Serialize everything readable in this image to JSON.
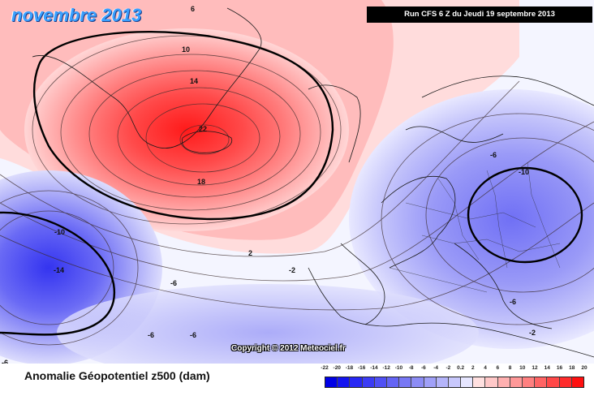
{
  "header": {
    "month_title": "novembre 2013",
    "run_info": "Run CFS 6 Z du Jeudi 19 septembre 2013"
  },
  "map": {
    "copyright": "Copyright © 2012 Meteociel.fr",
    "contour_labels": [
      "6",
      "10",
      "14",
      "22",
      "18",
      "2",
      "-2",
      "-6",
      "-10",
      "-14",
      "-6",
      "-6",
      "-6",
      "-6",
      "-10",
      "-6",
      "-2"
    ]
  },
  "footer": {
    "caption": "Anomalie Géopotentiel z500 (dam)"
  },
  "legend": {
    "ticks": [
      "-22",
      "-20",
      "-18",
      "-16",
      "-14",
      "-12",
      "-10",
      "-8",
      "-6",
      "-4",
      "-2",
      "0.2",
      "2",
      "4",
      "6",
      "8",
      "10",
      "12",
      "14",
      "16",
      "18",
      "20"
    ],
    "colors": [
      "#0000e6",
      "#1414f0",
      "#2828f5",
      "#3c3cf5",
      "#5050f5",
      "#6464f5",
      "#7878f5",
      "#8c8cf5",
      "#a0a0f8",
      "#b4b4fa",
      "#c8c8fc",
      "#e6e6ff",
      "#ffe0e0",
      "#ffc8c8",
      "#ffb0b0",
      "#ff9898",
      "#ff8080",
      "#ff6464",
      "#ff4848",
      "#ff2c2c",
      "#ff1010"
    ]
  }
}
